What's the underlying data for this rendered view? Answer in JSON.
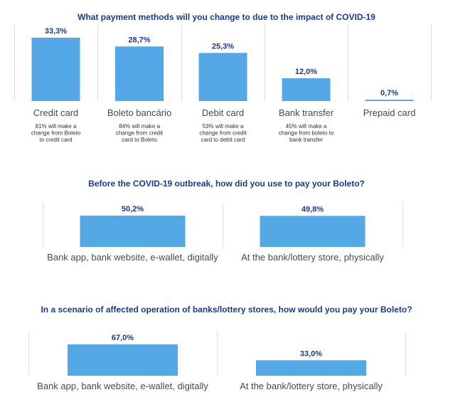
{
  "colors": {
    "bar": "#55a8e6",
    "title": "#1a3a8f",
    "separator": "#dedede"
  },
  "chart_data": [
    {
      "type": "bar",
      "title": "What payment methods will you change to due to the impact of COVID-19",
      "categories": [
        "Credit card",
        "Boleto bancário",
        "Debit card",
        "Bank transfer",
        "Prepaid card"
      ],
      "values": [
        33.3,
        28.7,
        25.3,
        12.0,
        0.7
      ],
      "value_labels": [
        "33,3%",
        "28,7%",
        "25,3%",
        "12,0%",
        "0,7%"
      ],
      "notes": [
        [
          "81% will make a",
          "change from Boleto",
          "to credit card"
        ],
        [
          "84% will make a",
          "change from credit",
          "card to Boleto"
        ],
        [
          "53% will make a",
          "change from credit",
          "card to debit card"
        ],
        [
          "45% will make a",
          "change from boleto to",
          "bank transfer"
        ],
        []
      ],
      "ylim": [
        0,
        33.3
      ]
    },
    {
      "type": "bar",
      "title": "Before the COVID-19 outbreak, how did you use to pay your Boleto?",
      "categories": [
        "Bank app, bank website, e-wallet, digitally",
        "At the bank/lottery store, physically"
      ],
      "values": [
        50.2,
        49.8
      ],
      "value_labels": [
        "50,2%",
        "49,8%"
      ],
      "ylim": [
        0,
        50.2
      ]
    },
    {
      "type": "bar",
      "title": "In a scenario of affected operation of banks/lottery stores, how would you pay your Boleto?",
      "categories": [
        "Bank app, bank website, e-wallet, digitally",
        "At the bank/lottery store, physically"
      ],
      "values": [
        67.0,
        33.0
      ],
      "value_labels": [
        "67,0%",
        "33,0%"
      ],
      "ylim": [
        0,
        67.0
      ]
    }
  ]
}
